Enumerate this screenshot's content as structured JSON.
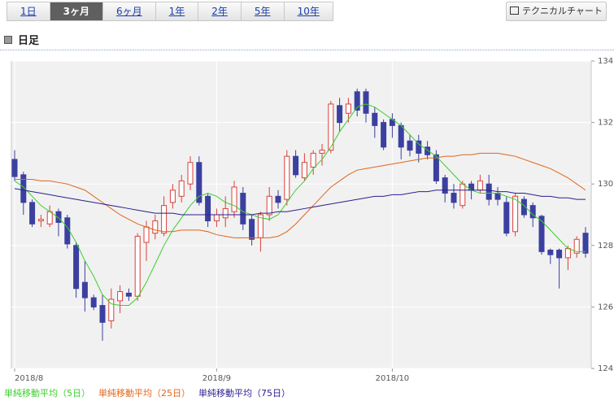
{
  "tabs": [
    "1日",
    "3ヶ月",
    "6ヶ月",
    "1年",
    "2年",
    "5年",
    "10年"
  ],
  "selected_tab": 1,
  "button": "テクニカルチャート",
  "section_title": "日足",
  "chart_data": {
    "type": "candlestick",
    "categories": [
      "2018/8",
      null,
      null,
      null,
      null,
      null,
      null,
      null,
      null,
      null,
      null,
      null,
      null,
      null,
      null,
      null,
      null,
      null,
      null,
      null,
      null,
      null,
      null,
      "2018/9",
      null,
      null,
      null,
      null,
      null,
      null,
      null,
      null,
      null,
      null,
      null,
      null,
      null,
      null,
      null,
      null,
      null,
      null,
      null,
      "2018/10",
      null,
      null,
      null,
      null,
      null,
      null,
      null,
      null,
      null,
      null,
      null,
      null,
      null,
      null,
      null,
      null,
      null,
      null,
      null,
      null,
      null,
      null
    ],
    "open": [
      130.8,
      130.3,
      129.4,
      128.8,
      128.7,
      129.1,
      128.9,
      128.0,
      126.8,
      126.3,
      126.05,
      125.55,
      126.2,
      126.45,
      126.35,
      128.1,
      128.4,
      128.4,
      129.4,
      129.6,
      130.0,
      130.7,
      129.6,
      128.8,
      128.9,
      129.1,
      129.7,
      128.85,
      128.25,
      129.0,
      129.6,
      129.5,
      130.9,
      130.2,
      130.55,
      131.0,
      131.1,
      132.55,
      132.3,
      133.0,
      133.0,
      132.3,
      132.0,
      132.1,
      131.9,
      131.4,
      131.4,
      131.2,
      130.95,
      130.2,
      129.7,
      129.3,
      130.0,
      129.8,
      130.0,
      129.7,
      129.4,
      128.45,
      129.5,
      129.3,
      128.95,
      127.85,
      127.85,
      127.6,
      127.75,
      128.4
    ],
    "high": [
      131.1,
      130.4,
      129.5,
      129.0,
      129.3,
      129.2,
      129.0,
      128.1,
      127.5,
      126.4,
      126.4,
      126.6,
      126.7,
      126.6,
      128.4,
      128.8,
      129.0,
      129.6,
      130.0,
      130.3,
      130.9,
      130.9,
      129.7,
      129.2,
      129.6,
      130.1,
      129.9,
      129.0,
      129.1,
      129.9,
      129.8,
      131.1,
      131.1,
      131.0,
      131.1,
      131.3,
      132.7,
      132.8,
      132.8,
      133.1,
      133.1,
      132.5,
      132.1,
      132.3,
      132.0,
      131.6,
      131.6,
      131.4,
      131.1,
      130.3,
      130.0,
      130.1,
      130.1,
      130.3,
      130.3,
      129.9,
      129.6,
      129.7,
      129.6,
      129.4,
      129.0,
      127.9,
      127.9,
      128.0,
      128.3,
      128.6
    ],
    "low": [
      130.1,
      129.0,
      128.6,
      128.6,
      128.6,
      128.3,
      127.9,
      126.3,
      125.85,
      125.9,
      124.9,
      125.3,
      125.8,
      126.2,
      126.2,
      127.5,
      128.2,
      128.3,
      129.2,
      129.4,
      129.8,
      129.3,
      128.6,
      128.6,
      128.6,
      128.9,
      128.5,
      128.0,
      127.8,
      128.8,
      129.2,
      129.3,
      130.2,
      130.1,
      130.3,
      130.6,
      131.0,
      131.7,
      132.0,
      132.2,
      132.0,
      131.5,
      131.1,
      131.5,
      130.8,
      130.9,
      130.7,
      130.8,
      130.0,
      129.4,
      129.2,
      129.2,
      129.5,
      129.7,
      129.3,
      129.3,
      128.3,
      128.3,
      128.9,
      128.6,
      127.7,
      127.4,
      126.6,
      127.2,
      127.6,
      127.6
    ],
    "close": [
      130.24,
      129.4,
      128.7,
      128.85,
      129.1,
      128.75,
      128.05,
      126.6,
      126.3,
      126.0,
      125.5,
      126.25,
      126.5,
      126.35,
      128.3,
      128.6,
      128.8,
      129.3,
      129.8,
      130.1,
      130.7,
      129.4,
      128.8,
      129.0,
      129.2,
      129.9,
      128.7,
      128.2,
      129.0,
      129.6,
      129.4,
      130.9,
      130.3,
      130.7,
      131.0,
      131.1,
      132.6,
      132.0,
      132.6,
      132.4,
      132.3,
      131.9,
      131.2,
      131.9,
      131.2,
      131.1,
      131.0,
      130.95,
      130.1,
      129.7,
      129.4,
      130.0,
      129.8,
      130.1,
      129.5,
      129.5,
      128.4,
      129.6,
      129.0,
      128.9,
      127.8,
      127.7,
      127.6,
      127.9,
      128.2,
      127.75
    ],
    "up_color": "#d9413a",
    "down_color": "#3b40a0",
    "series": [
      {
        "name": "単純移動平均（5日）",
        "color": "#3ccf2e",
        "values": [
          130.1,
          129.9,
          129.6,
          129.3,
          129.1,
          128.9,
          128.6,
          128.1,
          127.5,
          127.0,
          126.4,
          126.1,
          126.05,
          126.05,
          126.3,
          126.8,
          127.4,
          128.0,
          128.5,
          128.9,
          129.3,
          129.6,
          129.7,
          129.6,
          129.4,
          129.3,
          129.1,
          129.0,
          128.9,
          128.85,
          129.0,
          129.4,
          129.8,
          130.1,
          130.5,
          130.8,
          131.2,
          131.7,
          132.1,
          132.5,
          132.6,
          132.5,
          132.3,
          132.1,
          131.9,
          131.6,
          131.3,
          131.1,
          130.9,
          130.6,
          130.3,
          130.0,
          129.8,
          129.7,
          129.7,
          129.7,
          129.6,
          129.5,
          129.3,
          129.0,
          128.8,
          128.5,
          128.2,
          127.9,
          127.8,
          127.8
        ]
      },
      {
        "name": "単純移動平均（25日）",
        "color": "#e0661c",
        "values": [
          130.15,
          130.15,
          130.15,
          130.1,
          130.1,
          130.05,
          130.0,
          129.9,
          129.8,
          129.6,
          129.4,
          129.2,
          129.0,
          128.85,
          128.7,
          128.6,
          128.5,
          128.45,
          128.45,
          128.5,
          128.5,
          128.5,
          128.45,
          128.35,
          128.3,
          128.25,
          128.25,
          128.25,
          128.25,
          128.25,
          128.3,
          128.45,
          128.7,
          129.0,
          129.3,
          129.6,
          129.9,
          130.1,
          130.3,
          130.45,
          130.5,
          130.55,
          130.6,
          130.65,
          130.7,
          130.75,
          130.8,
          130.85,
          130.85,
          130.9,
          130.9,
          130.95,
          130.95,
          131.0,
          131.0,
          131.0,
          130.95,
          130.9,
          130.8,
          130.7,
          130.6,
          130.5,
          130.35,
          130.2,
          130.0,
          129.8
        ]
      },
      {
        "name": "単純移動平均（75日）",
        "color": "#2b1f8f",
        "values": [
          129.85,
          129.8,
          129.75,
          129.7,
          129.65,
          129.6,
          129.55,
          129.5,
          129.45,
          129.4,
          129.35,
          129.3,
          129.25,
          129.2,
          129.15,
          129.1,
          129.05,
          129.05,
          129.05,
          129.0,
          129.0,
          129.0,
          129.0,
          129.0,
          129.0,
          129.0,
          129.0,
          129.0,
          129.05,
          129.05,
          129.1,
          129.1,
          129.15,
          129.2,
          129.25,
          129.3,
          129.35,
          129.4,
          129.45,
          129.5,
          129.55,
          129.6,
          129.6,
          129.65,
          129.65,
          129.7,
          129.75,
          129.75,
          129.8,
          129.8,
          129.8,
          129.8,
          129.8,
          129.8,
          129.8,
          129.75,
          129.75,
          129.7,
          129.7,
          129.65,
          129.6,
          129.6,
          129.55,
          129.55,
          129.5,
          129.5
        ]
      }
    ],
    "ylim": [
      124,
      134
    ],
    "yticks": [
      124,
      126,
      128,
      130,
      132,
      134
    ],
    "grid": true
  }
}
